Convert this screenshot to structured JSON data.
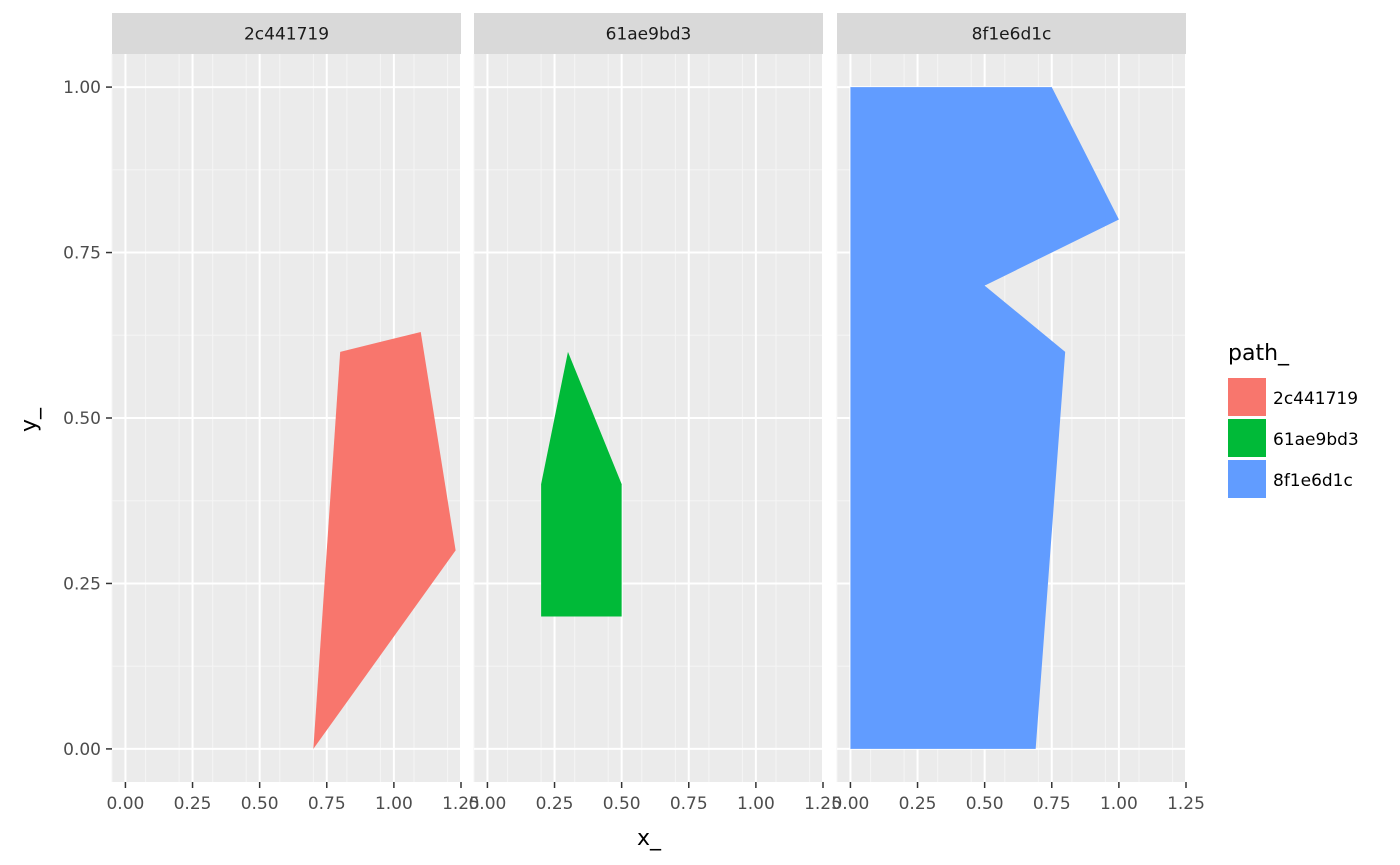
{
  "chart_data": {
    "type": "area",
    "xlabel": "x_",
    "ylabel": "y_",
    "xlim": [
      -0.05,
      1.25
    ],
    "ylim": [
      -0.05,
      1.05
    ],
    "x_ticks": [
      0,
      0.25,
      0.5,
      0.75,
      1,
      1.25
    ],
    "x_tick_labels": [
      "0.00",
      "0.25",
      "0.50",
      "0.75",
      "1.00",
      "1.25"
    ],
    "y_ticks": [
      0,
      0.25,
      0.5,
      0.75,
      1
    ],
    "y_tick_labels": [
      "0.00",
      "0.25",
      "0.50",
      "0.75",
      "1.00"
    ],
    "grid": true,
    "legend": {
      "title": "path_",
      "placement": "right",
      "entries": [
        {
          "label": "2c441719",
          "color": "#F8766D"
        },
        {
          "label": "61ae9bd3",
          "color": "#00BA38"
        },
        {
          "label": "8f1e6d1c",
          "color": "#619CFF"
        }
      ]
    },
    "facets": [
      {
        "label": "2c441719",
        "color": "#F8766D",
        "points": [
          [
            0.7,
            0
          ],
          [
            0.8,
            0.6
          ],
          [
            1.1,
            0.63
          ],
          [
            1.23,
            0.3
          ],
          [
            0.7,
            0
          ]
        ]
      },
      {
        "label": "61ae9bd3",
        "color": "#00BA38",
        "points": [
          [
            0.2,
            0.2
          ],
          [
            0.2,
            0.4
          ],
          [
            0.3,
            0.6
          ],
          [
            0.5,
            0.4
          ],
          [
            0.5,
            0.2
          ],
          [
            0.2,
            0.2
          ]
        ]
      },
      {
        "label": "8f1e6d1c",
        "color": "#619CFF",
        "points": [
          [
            0,
            0
          ],
          [
            0,
            1
          ],
          [
            0.75,
            1
          ],
          [
            1,
            0.8
          ],
          [
            0.5,
            0.7
          ],
          [
            0.8,
            0.6
          ],
          [
            0.69,
            0
          ],
          [
            0,
            0
          ]
        ]
      }
    ]
  }
}
